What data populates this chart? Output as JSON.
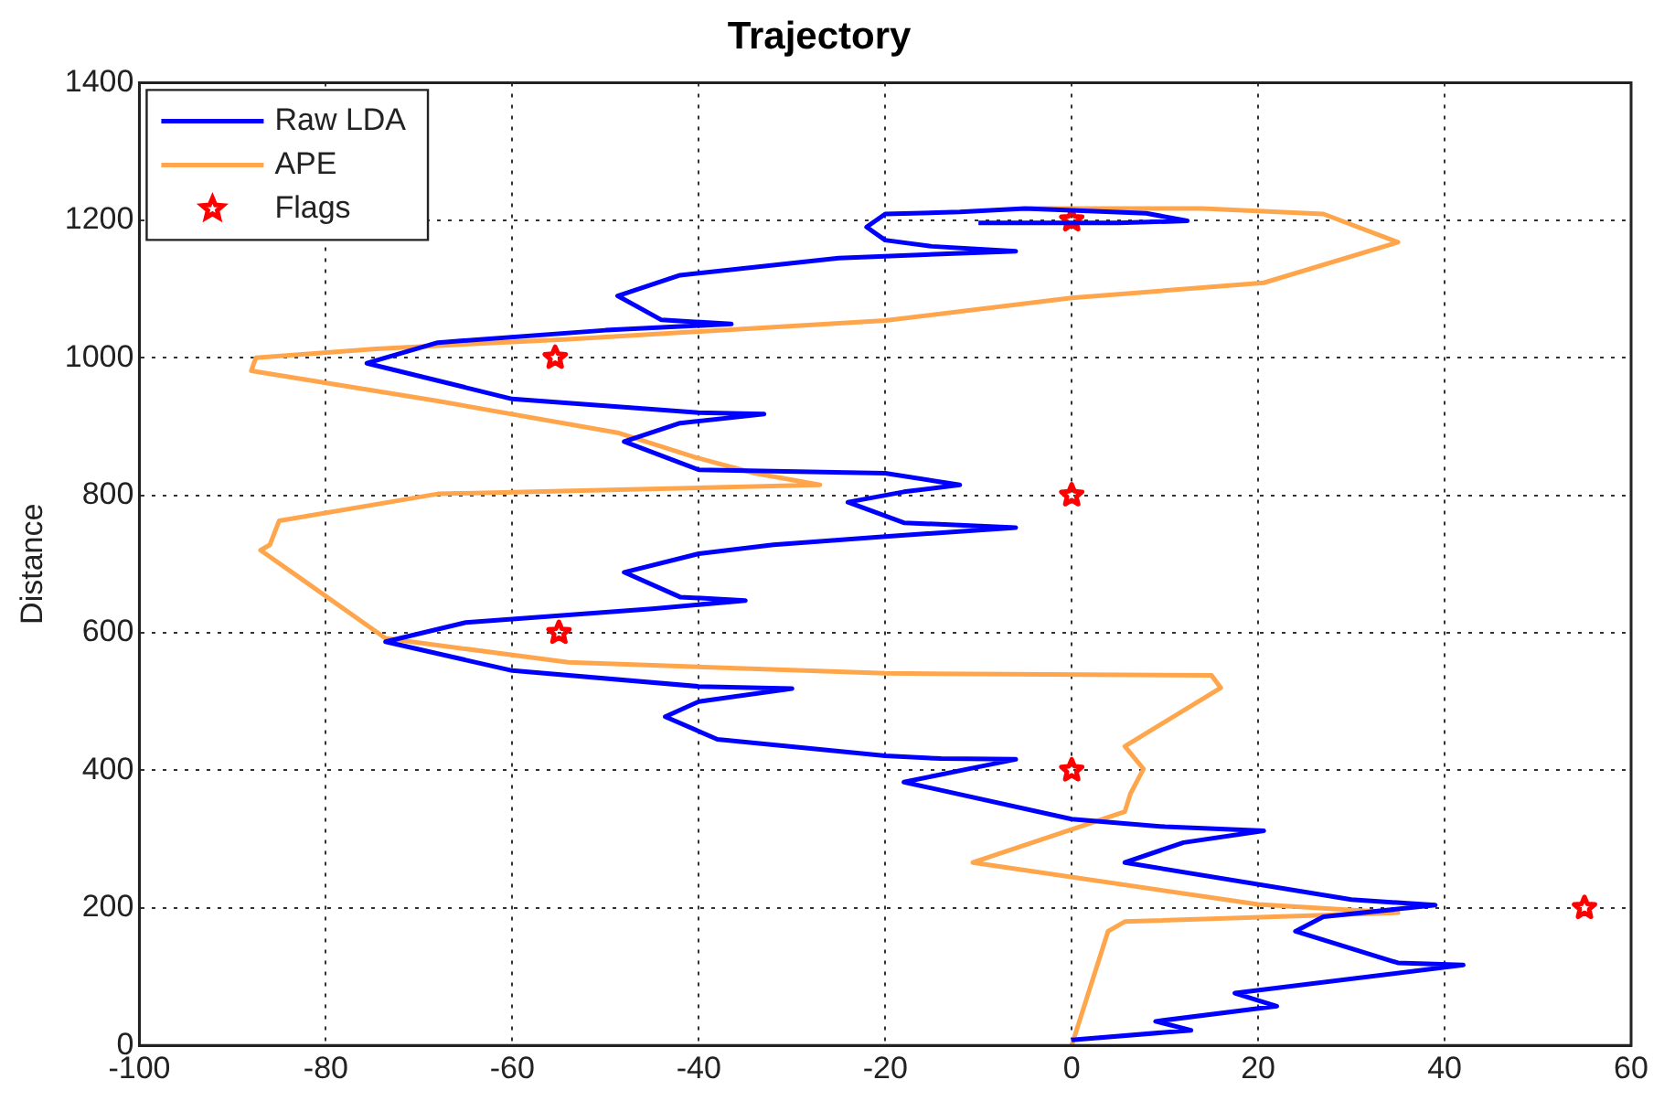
{
  "chart_data": {
    "type": "line",
    "title": "Trajectory",
    "ylabel": "Distance",
    "legend": "top left",
    "grid": true,
    "xlim": [
      -100,
      60
    ],
    "xticks": [
      -100,
      -80,
      -60,
      -40,
      -20,
      0,
      20,
      40,
      60
    ],
    "ylim": [
      0,
      1400
    ],
    "yticks": [
      0,
      200,
      400,
      600,
      800,
      1000,
      1200,
      1400
    ],
    "series": [
      {
        "name": "Raw LDA",
        "color": "#0000ff",
        "x": [
          0,
          12.8,
          9,
          22,
          17.5,
          42,
          35,
          24,
          27,
          39,
          30,
          5.7,
          12,
          20.6,
          10,
          0,
          -18,
          -10,
          -6,
          -14,
          -20,
          -38,
          -43.6,
          -40,
          -30,
          -40,
          -60,
          -73.6,
          -65,
          -45,
          -35,
          -42,
          -48,
          -40,
          -32,
          -20,
          -6,
          -18,
          -24,
          -18,
          -12,
          -20,
          -40,
          -48,
          -42,
          -33,
          -40,
          -60,
          -75.6,
          -68,
          -50,
          -36.5,
          -44,
          -48.7,
          -42,
          -25,
          -6,
          -15,
          -20,
          -22,
          -20,
          -12,
          -5,
          8,
          12.4,
          5,
          -10
        ],
        "values": [
          8,
          22,
          35,
          57,
          76,
          117,
          120,
          166,
          187,
          204,
          212,
          266,
          295,
          312,
          318,
          329,
          383,
          405,
          416,
          417,
          421,
          445,
          478,
          500,
          519,
          522,
          545,
          587,
          615,
          635,
          647,
          652,
          688,
          715,
          728,
          740,
          753,
          760,
          790,
          805,
          815,
          832,
          837,
          878,
          905,
          918,
          920,
          940,
          992,
          1022,
          1040,
          1049,
          1055,
          1090,
          1120,
          1145,
          1155,
          1162,
          1171,
          1190,
          1209,
          1212,
          1217,
          1210,
          1199,
          1196,
          1196
        ]
      },
      {
        "name": "APE",
        "color": "#ffa64d",
        "x": [
          0,
          3.9,
          5.7,
          35,
          20,
          -10.6,
          5.7,
          6.3,
          7.7,
          5.7,
          16,
          15,
          -20,
          -54,
          -73.6,
          -83,
          -87,
          -86,
          -85,
          -68,
          -27,
          -34,
          -40.6,
          -48.7,
          -68,
          -88,
          -87.5,
          -74.6,
          -54,
          -20,
          0,
          20.6,
          35,
          27,
          14,
          -4.5
        ],
        "values": [
          0,
          166,
          180,
          193,
          205,
          266,
          340,
          366,
          402,
          435,
          520,
          538,
          541,
          557,
          592,
          682,
          720,
          728,
          763,
          802,
          815,
          832,
          856,
          891,
          937,
          981,
          1000,
          1013,
          1027,
          1054,
          1087,
          1109,
          1168,
          1209,
          1217,
          1217
        ]
      },
      {
        "name": "Flags",
        "type": "scatter",
        "marker": "star",
        "color": "#ff0000",
        "x": [
          0,
          -55.4,
          0,
          -55,
          0,
          55
        ],
        "values": [
          1200,
          1000,
          800,
          600,
          400,
          200
        ]
      }
    ]
  }
}
